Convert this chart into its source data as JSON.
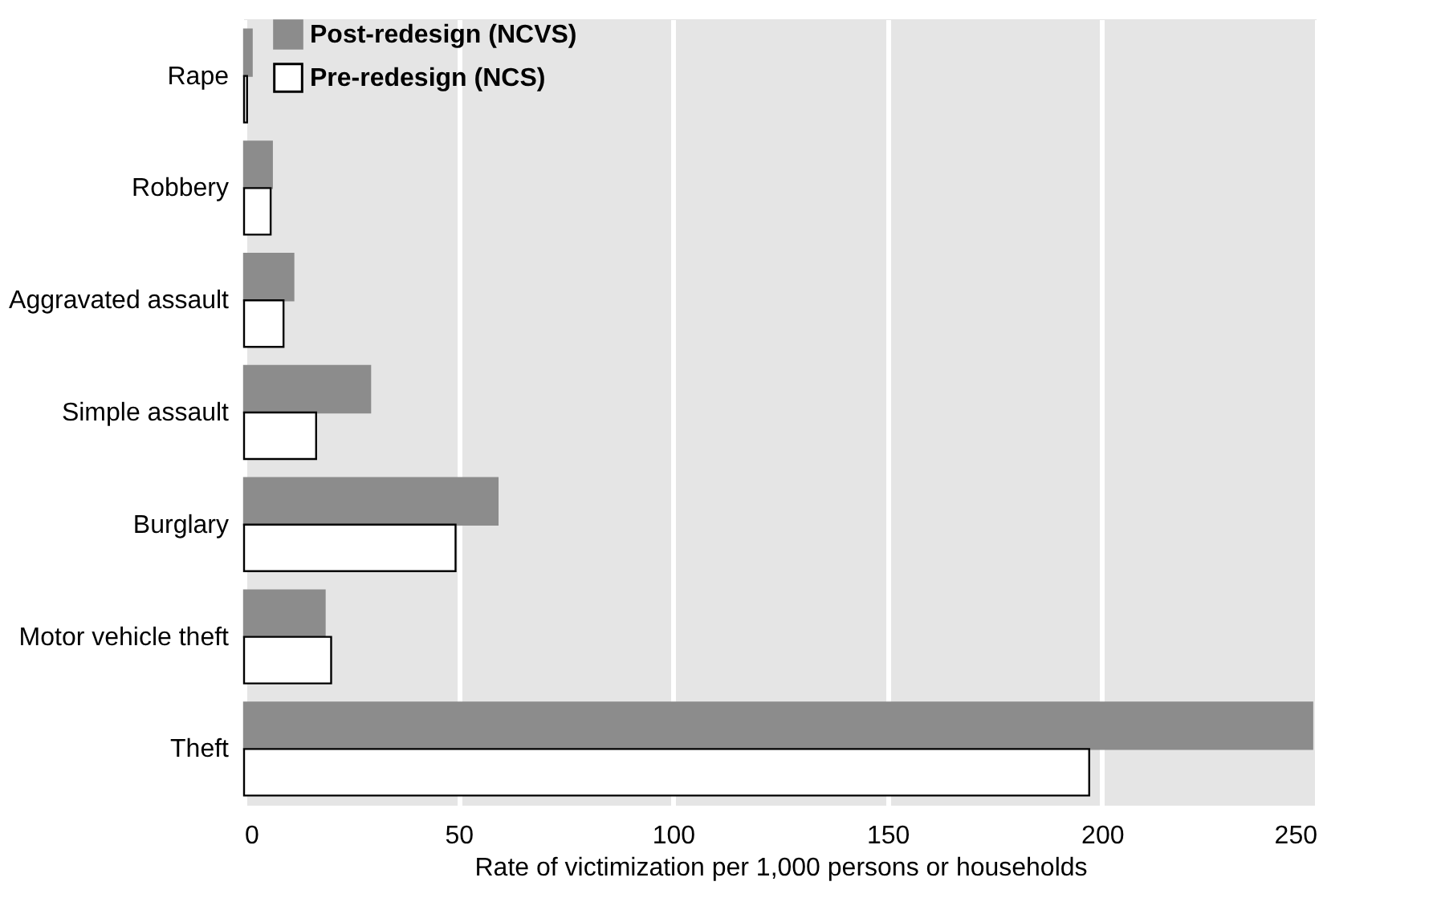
{
  "chart_data": {
    "type": "bar",
    "orientation": "horizontal",
    "categories": [
      "Rape",
      "Robbery",
      "Aggravated assault",
      "Simple assault",
      "Burglary",
      "Motor vehicle theft",
      "Theft"
    ],
    "series": [
      {
        "name": "Post-redesign (NCVS)",
        "color": "#8c8c8c",
        "values": [
          1.8,
          6.5,
          11.5,
          29.4,
          59.1,
          18.8,
          249
        ]
      },
      {
        "name": "Pre-redesign (NCS)",
        "color": "#ffffff",
        "values": [
          0.7,
          6.2,
          9.2,
          16.8,
          49.3,
          20.3,
          197
        ]
      }
    ],
    "xlabel": "Rate of victimization per 1,000 persons or households",
    "xlim": [
      0,
      250
    ],
    "xticks": [
      0,
      50,
      100,
      150,
      200,
      250
    ],
    "grid": "x",
    "legend": "top left"
  }
}
